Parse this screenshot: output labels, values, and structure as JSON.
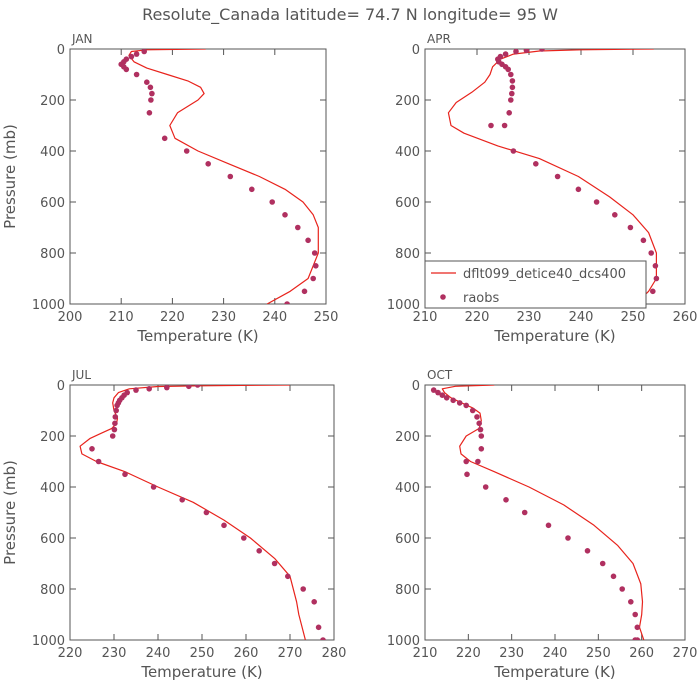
{
  "title": "Resolute_Canada  latitude= 74.7 N longitude= 95 W",
  "colors": {
    "model": "#e8231c",
    "obs": "#b03060",
    "axis": "#555555"
  },
  "legend": {
    "model": "dflt099_detice40_dcs400",
    "obs": "raobs",
    "placement": "lower-left of APR panel"
  },
  "chart_data": [
    {
      "type": "line",
      "panel": "JAN",
      "xlabel": "Temperature (K)",
      "ylabel": "Pressure (mb)",
      "xlim": [
        200,
        250
      ],
      "xticks": [
        200,
        210,
        220,
        230,
        240,
        250
      ],
      "ylim": [
        1000,
        0
      ],
      "yticks": [
        0,
        200,
        400,
        600,
        800,
        1000
      ],
      "series": [
        {
          "name": "dflt099_detice40_dcs400",
          "kind": "line",
          "x": [
            226.5,
            215,
            212,
            211.5,
            212.5,
            215,
            219,
            223,
            225.5,
            226.2,
            225,
            221,
            219.5,
            220.5,
            225,
            231,
            237,
            242,
            245.5,
            247.5,
            248.5,
            248.5,
            246.5,
            243,
            238.5
          ],
          "y": [
            0,
            3,
            10,
            25,
            50,
            75,
            100,
            125,
            150,
            175,
            200,
            250,
            300,
            350,
            400,
            450,
            500,
            550,
            600,
            650,
            700,
            800,
            900,
            950,
            1000
          ]
        },
        {
          "name": "raobs",
          "kind": "points",
          "x": [
            214.5,
            213,
            212,
            211,
            210.5,
            210,
            210.5,
            211,
            213,
            215,
            215.7,
            216,
            215.8,
            215.5,
            218.5,
            222.8,
            227,
            231.3,
            235.5,
            239.5,
            242,
            244.5,
            246.5,
            247.8,
            248,
            247.5,
            245.8,
            242.4
          ],
          "y": [
            10,
            20,
            30,
            40,
            50,
            60,
            70,
            80,
            100,
            130,
            150,
            175,
            200,
            250,
            350,
            400,
            450,
            500,
            550,
            600,
            650,
            700,
            750,
            800,
            850,
            900,
            950,
            1000
          ]
        }
      ]
    },
    {
      "type": "line",
      "panel": "APR",
      "xlabel": "Temperature (K)",
      "ylabel": "",
      "xlim": [
        210,
        260
      ],
      "xticks": [
        210,
        220,
        230,
        240,
        250,
        260
      ],
      "ylim": [
        1000,
        0
      ],
      "yticks": [
        0,
        200,
        400,
        600,
        800,
        1000
      ],
      "series": [
        {
          "name": "dflt099_detice40_dcs400",
          "kind": "line",
          "x": [
            254,
            240,
            232,
            227,
            224.5,
            223,
            222.5,
            221.5,
            219,
            216,
            214.5,
            215,
            217.5,
            224,
            232,
            239.5,
            245.5,
            250,
            253,
            254.5,
            254.5,
            253,
            250.5
          ],
          "y": [
            0,
            3,
            8,
            20,
            40,
            70,
            100,
            130,
            170,
            210,
            250,
            300,
            330,
            380,
            430,
            500,
            580,
            650,
            720,
            800,
            900,
            950,
            1000
          ]
        },
        {
          "name": "raobs",
          "kind": "points",
          "x": [
            232.5,
            229.5,
            227.5,
            225.5,
            224.5,
            224,
            224.2,
            224.8,
            225.5,
            226,
            226.5,
            226.8,
            226.8,
            226.7,
            226.5,
            226.2,
            225.3,
            222.7,
            227,
            231.3,
            235.5,
            239.5,
            243,
            246.5,
            249.5,
            252,
            253.5,
            254.3,
            254.5,
            253.8,
            251
          ],
          "y": [
            0,
            5,
            10,
            20,
            30,
            40,
            50,
            60,
            70,
            80,
            100,
            125,
            150,
            175,
            200,
            250,
            300,
            300,
            400,
            450,
            500,
            550,
            600,
            650,
            700,
            750,
            800,
            850,
            900,
            950,
            1000
          ]
        }
      ]
    },
    {
      "type": "line",
      "panel": "JUL",
      "xlabel": "Temperature (K)",
      "ylabel": "Pressure (mb)",
      "xlim": [
        220,
        280
      ],
      "xticks": [
        220,
        230,
        240,
        250,
        260,
        270,
        280
      ],
      "ylim": [
        1000,
        0
      ],
      "yticks": [
        0,
        200,
        400,
        600,
        800,
        1000
      ],
      "series": [
        {
          "name": "dflt099_detice40_dcs400",
          "kind": "line",
          "x": [
            270,
            250,
            240,
            233.5,
            231,
            230,
            229.7,
            230,
            230.8,
            230.6,
            229.5,
            227,
            224.5,
            222.3,
            222.7,
            226,
            232.5,
            240,
            248,
            255,
            261,
            266.5,
            270,
            271.5,
            272,
            273.5
          ],
          "y": [
            0,
            3,
            6,
            15,
            30,
            50,
            70,
            100,
            130,
            150,
            170,
            190,
            210,
            240,
            270,
            300,
            340,
            400,
            460,
            530,
            600,
            680,
            750,
            850,
            900,
            1000
          ]
        },
        {
          "name": "raobs",
          "kind": "points",
          "x": [
            249,
            247,
            242,
            238,
            235,
            233,
            232.3,
            231.8,
            231.3,
            231,
            230.7,
            230.5,
            230.3,
            230.2,
            230.1,
            229.7,
            225,
            226.5,
            232.5,
            239,
            245.5,
            251,
            255,
            259.5,
            263,
            266.5,
            269.5,
            273,
            275.5,
            276.5,
            277.5
          ],
          "y": [
            0,
            5,
            10,
            15,
            20,
            30,
            40,
            50,
            60,
            70,
            80,
            100,
            125,
            150,
            175,
            200,
            250,
            300,
            350,
            400,
            450,
            500,
            550,
            600,
            650,
            700,
            750,
            800,
            850,
            950,
            1000
          ]
        }
      ]
    },
    {
      "type": "line",
      "panel": "OCT",
      "xlabel": "Temperature (K)",
      "ylabel": "",
      "xlim": [
        210,
        270
      ],
      "xticks": [
        210,
        220,
        230,
        240,
        250,
        260,
        270
      ],
      "ylim": [
        1000,
        0
      ],
      "yticks": [
        0,
        200,
        400,
        600,
        800,
        1000
      ],
      "series": [
        {
          "name": "dflt099_detice40_dcs400",
          "kind": "line",
          "x": [
            226,
            217,
            214,
            214.5,
            216,
            218.5,
            221,
            222.7,
            223,
            222.5,
            219.5,
            218,
            218.3,
            220.5,
            226,
            234,
            242,
            249,
            254.5,
            258,
            259.8,
            260.2,
            260,
            259.5,
            260.5
          ],
          "y": [
            0,
            5,
            15,
            30,
            50,
            70,
            90,
            110,
            140,
            170,
            200,
            240,
            270,
            300,
            340,
            400,
            470,
            550,
            630,
            700,
            780,
            850,
            900,
            950,
            1000
          ]
        },
        {
          "name": "raobs",
          "kind": "points",
          "x": [
            212,
            213,
            214,
            215,
            216.5,
            218,
            219.5,
            221,
            222,
            222.5,
            222.8,
            223,
            223,
            222.2,
            219.5,
            219.7,
            224,
            228.7,
            233,
            238.5,
            243,
            247.5,
            251,
            253.5,
            255.5,
            257.5,
            258.5,
            259,
            259,
            258.5
          ],
          "y": [
            20,
            30,
            40,
            50,
            60,
            70,
            80,
            100,
            125,
            150,
            175,
            200,
            250,
            300,
            300,
            350,
            400,
            450,
            500,
            550,
            600,
            650,
            700,
            750,
            800,
            850,
            900,
            950,
            1000,
            1000
          ]
        }
      ]
    }
  ]
}
